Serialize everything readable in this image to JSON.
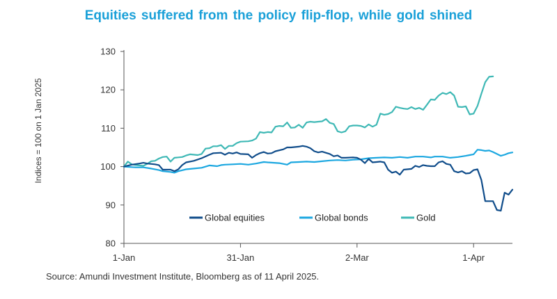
{
  "chart_data": {
    "type": "line",
    "title": "Equities suffered from the policy flip-flop, while gold shined",
    "ylabel": "Indices = 100 on 1 Jan 2025",
    "xlabel": "",
    "ylim": [
      80,
      130
    ],
    "yticks": [
      80,
      90,
      100,
      110,
      120,
      130
    ],
    "x_range_days": [
      0,
      100
    ],
    "xticks": [
      {
        "day": 0,
        "label": "1-Jan"
      },
      {
        "day": 30,
        "label": "31-Jan"
      },
      {
        "day": 60,
        "label": "2-Mar"
      },
      {
        "day": 90,
        "label": "1-Apr"
      }
    ],
    "grid": false,
    "legend_position": "bottom-center",
    "series": [
      {
        "name": "Global equities",
        "color": "#0f4c8a",
        "points": [
          [
            0,
            100
          ],
          [
            2,
            100.5
          ],
          [
            4,
            100.8
          ],
          [
            5,
            101
          ],
          [
            6,
            100.8
          ],
          [
            8,
            100.6
          ],
          [
            9,
            100.4
          ],
          [
            10,
            99.2
          ],
          [
            12,
            99.2
          ],
          [
            13,
            98.8
          ],
          [
            14,
            99.3
          ],
          [
            15,
            100.4
          ],
          [
            16,
            101.1
          ],
          [
            18,
            101.5
          ],
          [
            20,
            102.2
          ],
          [
            22,
            103.1
          ],
          [
            23,
            103.5
          ],
          [
            25,
            103.6
          ],
          [
            26,
            103.1
          ],
          [
            27,
            103.6
          ],
          [
            28,
            103.4
          ],
          [
            29,
            103.7
          ],
          [
            30,
            103.3
          ],
          [
            32,
            103.2
          ],
          [
            33,
            102.3
          ],
          [
            34,
            103
          ],
          [
            35,
            103.5
          ],
          [
            36,
            103.8
          ],
          [
            37,
            103.4
          ],
          [
            38,
            103.5
          ],
          [
            39,
            104
          ],
          [
            41,
            104.5
          ],
          [
            42,
            105
          ],
          [
            43,
            105
          ],
          [
            45,
            105.2
          ],
          [
            46,
            105.4
          ],
          [
            47,
            105.2
          ],
          [
            48,
            104.8
          ],
          [
            49,
            104
          ],
          [
            50,
            103.7
          ],
          [
            51,
            103.9
          ],
          [
            53,
            103.3
          ],
          [
            54,
            102.7
          ],
          [
            55,
            102.9
          ],
          [
            56,
            102.3
          ],
          [
            57,
            102.3
          ],
          [
            59,
            102.4
          ],
          [
            60,
            102.3
          ],
          [
            61,
            101.8
          ],
          [
            62,
            100.9
          ],
          [
            63,
            102
          ],
          [
            64,
            101.1
          ],
          [
            65,
            101.2
          ],
          [
            66,
            101.3
          ],
          [
            67,
            101.1
          ],
          [
            68,
            99.2
          ],
          [
            69,
            98.4
          ],
          [
            70,
            98.7
          ],
          [
            71,
            97.9
          ],
          [
            72,
            99.2
          ],
          [
            74,
            99.4
          ],
          [
            75,
            100.2
          ],
          [
            76,
            99.9
          ],
          [
            77,
            100.4
          ],
          [
            78,
            100.2
          ],
          [
            79,
            100.1
          ],
          [
            80,
            100.1
          ],
          [
            81,
            101.1
          ],
          [
            82,
            101.4
          ],
          [
            83,
            100.7
          ],
          [
            84,
            100.5
          ],
          [
            85,
            98.8
          ],
          [
            86,
            98.5
          ],
          [
            87,
            98.8
          ],
          [
            88,
            98.2
          ],
          [
            89,
            98.3
          ],
          [
            90,
            99.1
          ],
          [
            91,
            99.3
          ],
          [
            92,
            96.5
          ],
          [
            93,
            91
          ],
          [
            95,
            91
          ],
          [
            96,
            88.7
          ],
          [
            97,
            88.5
          ],
          [
            98,
            93.2
          ],
          [
            99,
            92.7
          ],
          [
            100,
            94
          ]
        ]
      },
      {
        "name": "Global bonds",
        "color": "#1ba7e0",
        "points": [
          [
            0,
            100
          ],
          [
            3,
            99.8
          ],
          [
            5,
            99.8
          ],
          [
            7,
            99.5
          ],
          [
            9,
            99.1
          ],
          [
            10,
            98.8
          ],
          [
            12,
            98.6
          ],
          [
            13,
            98.4
          ],
          [
            14,
            98.8
          ],
          [
            16,
            99.3
          ],
          [
            18,
            99.5
          ],
          [
            20,
            99.7
          ],
          [
            22,
            100.3
          ],
          [
            24,
            100.1
          ],
          [
            25,
            100.4
          ],
          [
            26,
            100.5
          ],
          [
            28,
            100.6
          ],
          [
            30,
            100.7
          ],
          [
            32,
            100.5
          ],
          [
            34,
            100.8
          ],
          [
            36,
            101.2
          ],
          [
            37,
            101.1
          ],
          [
            40,
            100.9
          ],
          [
            42,
            100.5
          ],
          [
            43,
            101.1
          ],
          [
            45,
            101.2
          ],
          [
            47,
            101.3
          ],
          [
            49,
            101.2
          ],
          [
            51,
            101.4
          ],
          [
            53,
            101.6
          ],
          [
            55,
            101.7
          ],
          [
            57,
            101.6
          ],
          [
            59,
            101.8
          ],
          [
            61,
            101.9
          ],
          [
            63,
            102.2
          ],
          [
            65,
            102.3
          ],
          [
            67,
            102.4
          ],
          [
            69,
            102.3
          ],
          [
            71,
            102.5
          ],
          [
            73,
            102.3
          ],
          [
            75,
            102.6
          ],
          [
            77,
            102.6
          ],
          [
            79,
            102.4
          ],
          [
            80,
            102.6
          ],
          [
            82,
            102.6
          ],
          [
            84,
            102.3
          ],
          [
            86,
            102.5
          ],
          [
            88,
            102.8
          ],
          [
            89,
            103
          ],
          [
            90,
            103.2
          ],
          [
            91,
            104.4
          ],
          [
            92,
            104.3
          ],
          [
            93,
            104.1
          ],
          [
            94,
            104.2
          ],
          [
            95,
            103.8
          ],
          [
            96,
            103.3
          ],
          [
            97,
            102.8
          ],
          [
            98,
            103.1
          ],
          [
            99,
            103.5
          ],
          [
            100,
            103.7
          ]
        ]
      },
      {
        "name": "Gold",
        "color": "#3eb8b5",
        "points": [
          [
            0,
            100
          ],
          [
            1,
            101.3
          ],
          [
            2,
            100.6
          ],
          [
            3,
            100.4
          ],
          [
            5,
            100.2
          ],
          [
            6,
            100.7
          ],
          [
            7,
            101.4
          ],
          [
            8,
            101.5
          ],
          [
            9,
            102.1
          ],
          [
            10,
            102.5
          ],
          [
            11,
            102.6
          ],
          [
            12,
            101.3
          ],
          [
            13,
            102.3
          ],
          [
            15,
            102.5
          ],
          [
            16,
            102.9
          ],
          [
            17,
            103.2
          ],
          [
            19,
            103
          ],
          [
            20,
            103.3
          ],
          [
            21,
            104.7
          ],
          [
            22,
            104.8
          ],
          [
            23,
            105.3
          ],
          [
            24,
            105.3
          ],
          [
            25,
            105.6
          ],
          [
            26,
            104.6
          ],
          [
            27,
            105.4
          ],
          [
            28,
            105.4
          ],
          [
            29,
            106.1
          ],
          [
            30,
            106.5
          ],
          [
            32,
            106.6
          ],
          [
            33,
            106.8
          ],
          [
            34,
            107.3
          ],
          [
            35,
            109
          ],
          [
            36,
            108.8
          ],
          [
            37,
            109
          ],
          [
            38,
            108.9
          ],
          [
            39,
            110.4
          ],
          [
            40,
            110.6
          ],
          [
            41,
            110.5
          ],
          [
            42,
            111.5
          ],
          [
            43,
            110.1
          ],
          [
            44,
            110.2
          ],
          [
            45,
            110.9
          ],
          [
            46,
            110.1
          ],
          [
            47,
            111.5
          ],
          [
            48,
            111.7
          ],
          [
            49,
            111.6
          ],
          [
            50,
            111.7
          ],
          [
            51,
            111.8
          ],
          [
            52,
            112.4
          ],
          [
            53,
            111.4
          ],
          [
            54,
            111.1
          ],
          [
            55,
            109.2
          ],
          [
            56,
            108.9
          ],
          [
            57,
            109.2
          ],
          [
            58,
            110.5
          ],
          [
            59,
            110.7
          ],
          [
            60,
            110.7
          ],
          [
            61,
            110.6
          ],
          [
            62,
            110.2
          ],
          [
            63,
            111
          ],
          [
            64,
            110.4
          ],
          [
            65,
            110.9
          ],
          [
            66,
            113.8
          ],
          [
            67,
            113.5
          ],
          [
            68,
            113.7
          ],
          [
            69,
            114.2
          ],
          [
            70,
            115.6
          ],
          [
            71,
            115.3
          ],
          [
            72,
            115.1
          ],
          [
            73,
            115
          ],
          [
            74,
            115.5
          ],
          [
            75,
            115
          ],
          [
            76,
            115.3
          ],
          [
            77,
            114.8
          ],
          [
            78,
            116.1
          ],
          [
            79,
            117.5
          ],
          [
            80,
            117.4
          ],
          [
            81,
            118.5
          ],
          [
            82,
            119.2
          ],
          [
            83,
            118.9
          ],
          [
            84,
            119.4
          ],
          [
            85,
            118.5
          ],
          [
            86,
            115.6
          ],
          [
            87,
            115.5
          ],
          [
            88,
            115.7
          ],
          [
            89,
            113.6
          ],
          [
            90,
            113.8
          ],
          [
            91,
            115.8
          ],
          [
            92,
            119
          ],
          [
            93,
            122
          ],
          [
            94,
            123.4
          ],
          [
            95,
            123.5
          ]
        ]
      }
    ]
  },
  "source_text": "Source: Amundi Investment Institute, Bloomberg as of 11 April 2025."
}
